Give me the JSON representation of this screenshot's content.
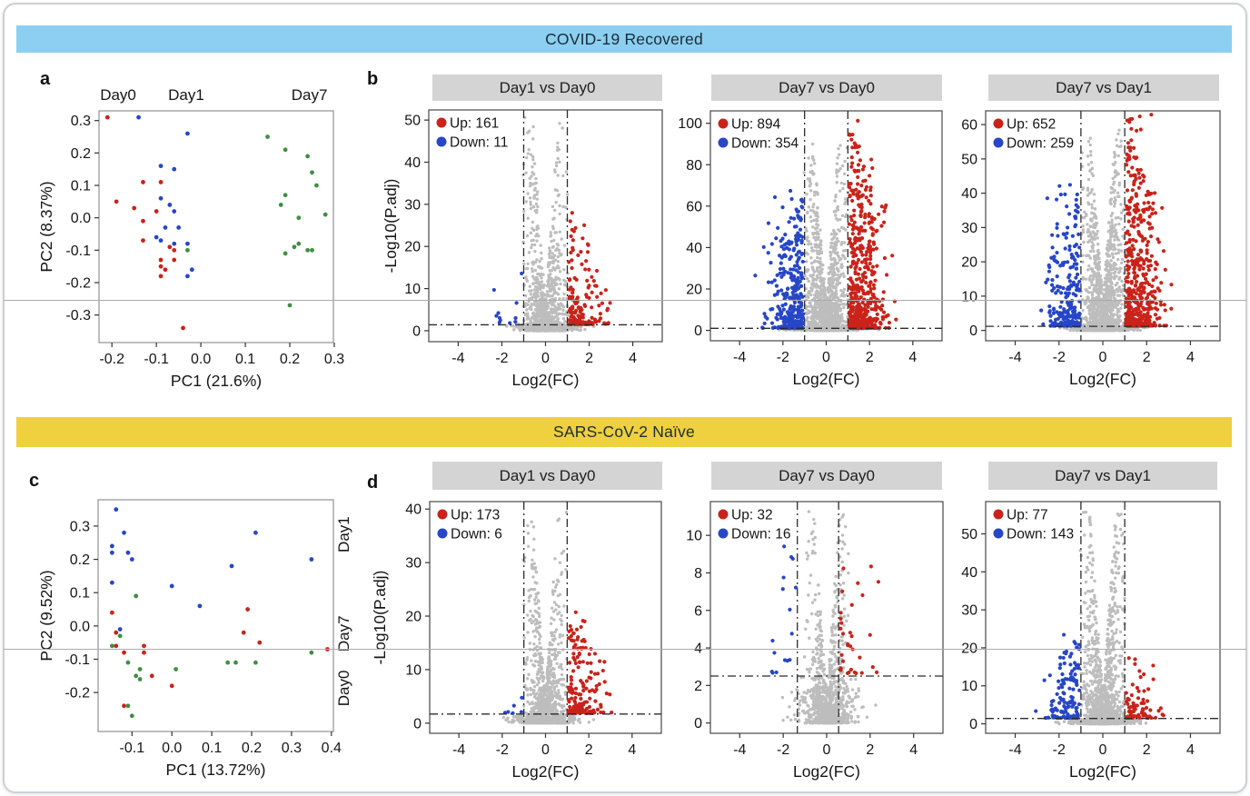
{
  "figure_title": "PCA and differential-expression volcano plots",
  "colors": {
    "banner_recovered": "#8CCFF0",
    "banner_naive": "#EFD03E",
    "volcano_title_bg": "#D4D4D4",
    "up_red": "#C9231A",
    "down_blue": "#2746C8",
    "green": "#3E8F41",
    "gray_points": "#BDBDBD",
    "text": "#1a1a1a"
  },
  "sections": [
    {
      "banner": {
        "title": "COVID-19 Recovered",
        "color": "#8CCFF0"
      },
      "letters": [
        "a",
        "b"
      ]
    },
    {
      "banner": {
        "title": "SARS-CoV-2 Naïve",
        "color": "#EFD03E"
      },
      "letters": [
        "c",
        "d"
      ]
    }
  ],
  "chart_data": [
    {
      "id": "pca_a",
      "type": "scatter",
      "panel": "a",
      "group": "COVID-19 Recovered",
      "title": "",
      "xlabel": "PC1 (21.6%)",
      "ylabel": "PC2 (8.37%)",
      "xlim": [
        -0.229,
        0.298
      ],
      "ylim": [
        -0.385,
        0.33
      ],
      "xticks": [
        -0.2,
        -0.1,
        0.0,
        0.1,
        0.2,
        0.3
      ],
      "yticks": [
        0.3,
        0.2,
        0.1,
        0.0,
        -0.1,
        -0.2,
        -0.3
      ],
      "top_labels": [
        {
          "text": "Day0",
          "x": -0.186
        },
        {
          "text": "Day1",
          "x": -0.033
        },
        {
          "text": "Day7",
          "x": 0.244
        }
      ],
      "series": [
        {
          "name": "Day0",
          "color": "#C9231A",
          "points": [
            [
              -0.21,
              0.31
            ],
            [
              -0.13,
              0.11
            ],
            [
              -0.09,
              0.11
            ],
            [
              -0.19,
              0.05
            ],
            [
              -0.15,
              0.03
            ],
            [
              -0.1,
              0.02
            ],
            [
              -0.13,
              -0.01
            ],
            [
              -0.13,
              -0.07
            ],
            [
              -0.07,
              -0.09
            ],
            [
              -0.06,
              -0.1
            ],
            [
              -0.09,
              -0.13
            ],
            [
              -0.06,
              -0.13
            ],
            [
              -0.09,
              -0.15
            ],
            [
              -0.08,
              -0.16
            ],
            [
              -0.09,
              -0.18
            ],
            [
              -0.04,
              -0.34
            ]
          ]
        },
        {
          "name": "Day1",
          "color": "#2746C8",
          "points": [
            [
              -0.14,
              0.31
            ],
            [
              -0.03,
              0.26
            ],
            [
              -0.09,
              0.16
            ],
            [
              -0.06,
              0.15
            ],
            [
              -0.09,
              0.06
            ],
            [
              -0.07,
              0.04
            ],
            [
              -0.06,
              0.02
            ],
            [
              -0.08,
              -0.03
            ],
            [
              -0.05,
              -0.03
            ],
            [
              -0.1,
              -0.06
            ],
            [
              -0.09,
              -0.07
            ],
            [
              -0.06,
              -0.08
            ],
            [
              -0.03,
              -0.08
            ],
            [
              -0.02,
              -0.16
            ],
            [
              -0.03,
              -0.18
            ]
          ]
        },
        {
          "name": "Day7",
          "color": "#3E8F41",
          "points": [
            [
              0.15,
              0.25
            ],
            [
              0.19,
              0.21
            ],
            [
              0.24,
              0.19
            ],
            [
              0.25,
              0.14
            ],
            [
              0.26,
              0.1
            ],
            [
              0.19,
              0.07
            ],
            [
              0.18,
              0.04
            ],
            [
              0.22,
              0.0
            ],
            [
              0.28,
              0.01
            ],
            [
              0.22,
              -0.08
            ],
            [
              0.21,
              -0.09
            ],
            [
              0.24,
              -0.1
            ],
            [
              0.19,
              -0.11
            ],
            [
              0.25,
              -0.1
            ],
            [
              0.2,
              -0.27
            ],
            [
              -0.03,
              -0.1
            ]
          ]
        }
      ]
    },
    {
      "id": "v_b1",
      "type": "volcano",
      "panel": "b",
      "group": "COVID-19 Recovered",
      "title": "Day1 vs Day0",
      "up": 161,
      "down": 11,
      "legend": {
        "up_label": "Up: 161",
        "down_label": "Down: 11"
      },
      "xlabel": "Log2(FC)",
      "ylabel": "-Log10(P.adj)",
      "show_ylabel": true,
      "xlim": [
        -5.35,
        5.35
      ],
      "xticks": [
        -4,
        -2,
        0,
        2,
        4
      ],
      "ylim": [
        -2.6,
        52.4
      ],
      "yticks": [
        0,
        10,
        20,
        30,
        40,
        50
      ],
      "vlines": [
        -1,
        1
      ],
      "hline": 1.4,
      "gray_max": 51,
      "up_max": 31,
      "down_max": 15
    },
    {
      "id": "v_b2",
      "type": "volcano",
      "panel": "b",
      "group": "COVID-19 Recovered",
      "title": "Day7 vs Day0",
      "up": 894,
      "down": 354,
      "legend": {
        "up_label": "Up: 894",
        "down_label": "Down: 354"
      },
      "xlabel": "Log2(FC)",
      "ylabel": "-Log10(P.adj)",
      "show_ylabel": false,
      "xlim": [
        -5.35,
        5.35
      ],
      "xticks": [
        -4,
        -2,
        0,
        2,
        4
      ],
      "ylim": [
        -5,
        106
      ],
      "yticks": [
        0,
        20,
        40,
        60,
        80,
        100
      ],
      "vlines": [
        -1,
        1
      ],
      "hline": 1.0,
      "gray_max": 93,
      "up_max": 104,
      "down_max": 68
    },
    {
      "id": "v_b3",
      "type": "volcano",
      "panel": "b",
      "group": "COVID-19 Recovered",
      "title": "Day7 vs Day1",
      "up": 652,
      "down": 259,
      "legend": {
        "up_label": "Up: 652",
        "down_label": "Down: 259"
      },
      "xlabel": "Log2(FC)",
      "ylabel": "-Log10(P.adj)",
      "show_ylabel": false,
      "xlim": [
        -5.35,
        5.35
      ],
      "xticks": [
        -4,
        -2,
        0,
        2,
        4
      ],
      "ylim": [
        -3,
        64
      ],
      "yticks": [
        0,
        10,
        20,
        30,
        40,
        50,
        60
      ],
      "vlines": [
        -1,
        1
      ],
      "hline": 1.2,
      "gray_max": 60,
      "up_max": 63,
      "down_max": 43
    },
    {
      "id": "pca_c",
      "type": "scatter",
      "panel": "c",
      "group": "SARS-CoV-2 Naïve",
      "title": "",
      "xlabel": "PC1 (13.72%)",
      "ylabel": "PC2 (9.52%)",
      "xlim": [
        -0.185,
        0.405
      ],
      "ylim": [
        -0.317,
        0.379
      ],
      "xticks": [
        -0.1,
        0.0,
        0.1,
        0.2,
        0.3,
        0.4
      ],
      "yticks": [
        0.3,
        0.2,
        0.1,
        0.0,
        -0.1,
        -0.2
      ],
      "right_labels": [
        {
          "text": "Day1",
          "y": 0.275
        },
        {
          "text": "Day7",
          "y": -0.023
        },
        {
          "text": "Day0",
          "y": -0.187
        }
      ],
      "series": [
        {
          "name": "Day1",
          "color": "#2746C8",
          "points": [
            [
              -0.14,
              0.35
            ],
            [
              -0.12,
              0.28
            ],
            [
              -0.15,
              0.24
            ],
            [
              -0.15,
              0.22
            ],
            [
              -0.11,
              0.22
            ],
            [
              -0.1,
              0.2
            ],
            [
              -0.15,
              0.13
            ],
            [
              0.21,
              0.28
            ],
            [
              0.15,
              0.18
            ],
            [
              0.35,
              0.2
            ],
            [
              0.0,
              0.12
            ],
            [
              0.07,
              0.06
            ],
            [
              -0.13,
              -0.01
            ]
          ]
        },
        {
          "name": "Day7",
          "color": "#C9231A",
          "points": [
            [
              -0.15,
              0.04
            ],
            [
              -0.14,
              -0.02
            ],
            [
              -0.14,
              -0.06
            ],
            [
              -0.12,
              -0.08
            ],
            [
              -0.07,
              -0.06
            ],
            [
              -0.07,
              -0.08
            ],
            [
              0.19,
              0.05
            ],
            [
              0.18,
              -0.02
            ],
            [
              0.22,
              -0.05
            ],
            [
              0.39,
              -0.07
            ],
            [
              -0.05,
              -0.15
            ],
            [
              0.0,
              -0.18
            ],
            [
              -0.12,
              -0.24
            ]
          ]
        },
        {
          "name": "Day0",
          "color": "#3E8F41",
          "points": [
            [
              -0.09,
              0.09
            ],
            [
              -0.13,
              -0.03
            ],
            [
              -0.15,
              -0.06
            ],
            [
              -0.11,
              -0.11
            ],
            [
              -0.08,
              -0.13
            ],
            [
              -0.09,
              -0.15
            ],
            [
              -0.08,
              -0.16
            ],
            [
              0.01,
              -0.13
            ],
            [
              0.14,
              -0.11
            ],
            [
              0.16,
              -0.11
            ],
            [
              0.21,
              -0.11
            ],
            [
              0.35,
              -0.08
            ],
            [
              -0.11,
              -0.24
            ],
            [
              -0.1,
              -0.27
            ]
          ]
        }
      ]
    },
    {
      "id": "v_d1",
      "type": "volcano",
      "panel": "d",
      "group": "SARS-CoV-2 Naïve",
      "title": "Day1 vs Day0",
      "up": 173,
      "down": 6,
      "legend": {
        "up_label": "Up: 173",
        "down_label": "Down: 6"
      },
      "xlabel": "Log2(FC)",
      "ylabel": "-Log10(P.adj)",
      "show_ylabel": true,
      "xlim": [
        -5.35,
        5.35
      ],
      "xticks": [
        -4,
        -2,
        0,
        2,
        4
      ],
      "ylim": [
        -1.9,
        41.4
      ],
      "yticks": [
        0,
        10,
        20,
        30,
        40
      ],
      "vlines": [
        -1,
        1
      ],
      "hline": 1.7,
      "gray_max": 39.5,
      "up_max": 21,
      "down_max": 5.5
    },
    {
      "id": "v_d2",
      "type": "volcano",
      "panel": "d",
      "group": "SARS-CoV-2 Naïve",
      "title": "Day7 vs Day0",
      "up": 32,
      "down": 16,
      "legend": {
        "up_label": "Up: 32",
        "down_label": "Down: 16"
      },
      "xlabel": "Log2(FC)",
      "ylabel": "-Log10(P.adj)",
      "show_ylabel": false,
      "xlim": [
        -5.35,
        5.35
      ],
      "xticks": [
        -4,
        -2,
        0,
        2,
        4
      ],
      "ylim": [
        -0.55,
        11.8
      ],
      "yticks": [
        0,
        2,
        4,
        6,
        8,
        10
      ],
      "vlines": [
        -1.35,
        0.55
      ],
      "hline": 2.5,
      "gray_max": 11.3,
      "up_max": 8.7,
      "down_max": 9.7
    },
    {
      "id": "v_d3",
      "type": "volcano",
      "panel": "d",
      "group": "SARS-CoV-2 Naïve",
      "title": "Day7 vs Day1",
      "up": 77,
      "down": 143,
      "legend": {
        "up_label": "Up: 77",
        "down_label": "Down: 143"
      },
      "xlabel": "Log2(FC)",
      "ylabel": "-Log10(P.adj)",
      "show_ylabel": false,
      "xlim": [
        -5.35,
        5.35
      ],
      "xticks": [
        -4,
        -2,
        0,
        2,
        4
      ],
      "ylim": [
        -2.5,
        58.5
      ],
      "yticks": [
        0,
        10,
        20,
        30,
        40,
        50
      ],
      "vlines": [
        -1,
        1
      ],
      "hline": 1.4,
      "gray_max": 56,
      "up_max": 18.5,
      "down_max": 24
    }
  ]
}
